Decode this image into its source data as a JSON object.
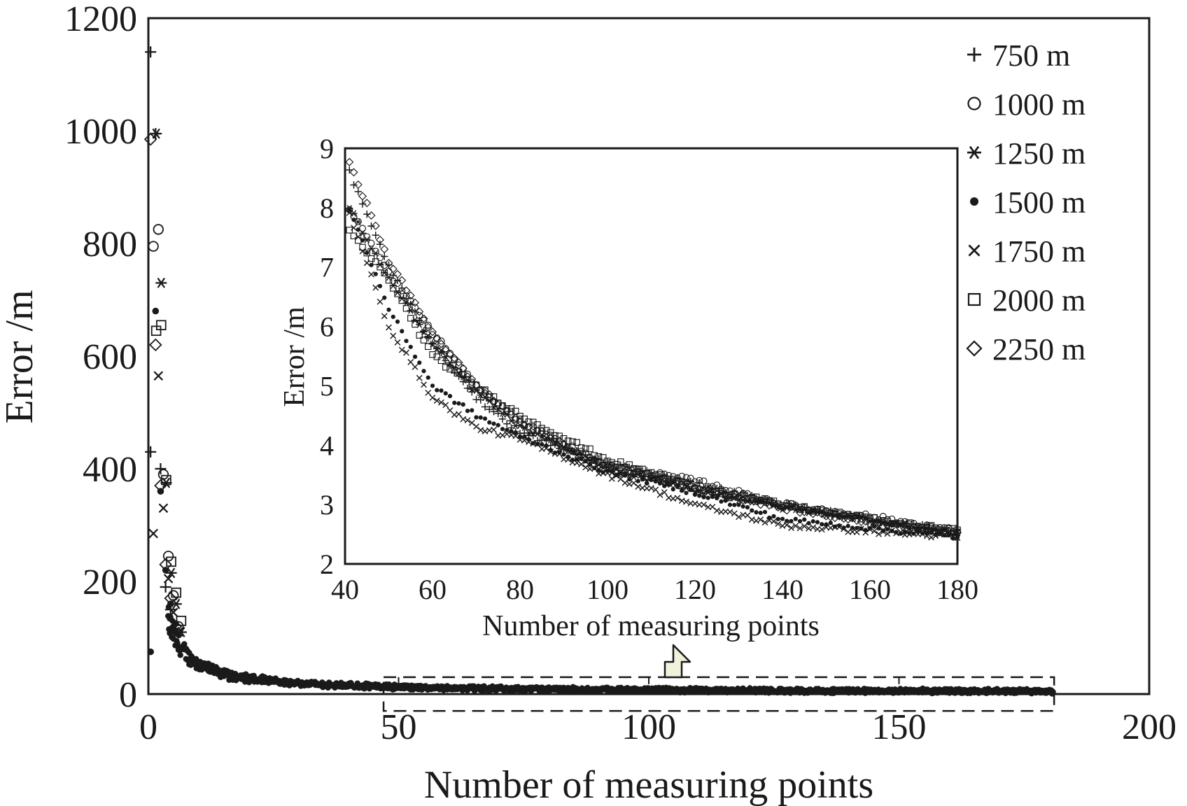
{
  "chart_data": [
    {
      "id": "main",
      "type": "scatter",
      "xlabel": "Number of measuring points",
      "ylabel": "Error /m",
      "xlim": [
        0,
        200
      ],
      "ylim": [
        0,
        1200
      ],
      "xticks": [
        0,
        50,
        100,
        150,
        200
      ],
      "yticks": [
        0,
        200,
        400,
        600,
        800,
        1000,
        1200
      ],
      "zoom_region": {
        "x": [
          47,
          181
        ],
        "y": [
          -30,
          30
        ]
      },
      "legend": {
        "position": "top-right"
      },
      "series": [
        {
          "name": "750 m",
          "marker": "plus",
          "points": [
            [
              1,
              1140
            ],
            [
              1,
              430
            ],
            [
              2,
              995
            ],
            [
              3,
              400
            ],
            [
              4,
              190
            ],
            [
              5,
              150
            ]
          ]
        },
        {
          "name": "1000 m",
          "marker": "circle",
          "points": [
            [
              1,
              795
            ],
            [
              2,
              825
            ],
            [
              3,
              390
            ],
            [
              4,
              245
            ],
            [
              5,
              175
            ],
            [
              6,
              120
            ]
          ]
        },
        {
          "name": "1250 m",
          "marker": "asterisk",
          "points": [
            [
              1,
              995
            ],
            [
              2,
              730
            ],
            [
              3,
              375
            ],
            [
              4,
              215
            ],
            [
              5,
              160
            ],
            [
              6,
              110
            ]
          ]
        },
        {
          "name": "1500 m",
          "marker": "dot",
          "points": [
            [
              1,
              75
            ],
            [
              2,
              680
            ],
            [
              3,
              360
            ],
            [
              4,
              220
            ],
            [
              5,
              160
            ],
            [
              6,
              125
            ]
          ]
        },
        {
          "name": "1750 m",
          "marker": "cross",
          "points": [
            [
              1,
              285
            ],
            [
              2,
              565
            ],
            [
              3,
              330
            ],
            [
              4,
              205
            ],
            [
              5,
              145
            ],
            [
              6,
              110
            ]
          ]
        },
        {
          "name": "2000 m",
          "marker": "square",
          "points": [
            [
              1,
              645
            ],
            [
              2,
              655
            ],
            [
              3,
              380
            ],
            [
              4,
              235
            ],
            [
              5,
              180
            ],
            [
              6,
              130
            ]
          ]
        },
        {
          "name": "2250 m",
          "marker": "diamond",
          "points": [
            [
              1,
              985
            ],
            [
              2,
              620
            ],
            [
              3,
              370
            ],
            [
              4,
              230
            ],
            [
              5,
              170
            ],
            [
              6,
              120
            ]
          ]
        }
      ],
      "decay_envelope": {
        "x_start": 4,
        "x_end": 181,
        "value_at_10": 55,
        "value_at_20": 28,
        "value_at_50": 8,
        "value_at_180": 2.5
      }
    },
    {
      "id": "inset",
      "type": "scatter",
      "xlabel": "Number of measuring points",
      "ylabel": "Error /m",
      "xlim": [
        40,
        180
      ],
      "ylim": [
        2,
        9
      ],
      "xticks": [
        40,
        60,
        80,
        100,
        120,
        140,
        160,
        180
      ],
      "yticks": [
        2,
        3,
        4,
        5,
        6,
        7,
        8,
        9
      ],
      "series": [
        {
          "name": "750 m",
          "marker": "plus",
          "anchors": [
            [
              41,
              8.6
            ],
            [
              50,
              7.0
            ],
            [
              60,
              5.7
            ],
            [
              70,
              4.8
            ],
            [
              80,
              4.2
            ],
            [
              100,
              3.7
            ],
            [
              120,
              3.35
            ],
            [
              140,
              3.0
            ],
            [
              160,
              2.75
            ],
            [
              180,
              2.55
            ]
          ]
        },
        {
          "name": "1000 m",
          "marker": "circle",
          "anchors": [
            [
              41,
              8.0
            ],
            [
              50,
              6.9
            ],
            [
              60,
              5.9
            ],
            [
              70,
              5.0
            ],
            [
              80,
              4.4
            ],
            [
              100,
              3.65
            ],
            [
              120,
              3.4
            ],
            [
              140,
              3.0
            ],
            [
              160,
              2.8
            ],
            [
              180,
              2.55
            ]
          ]
        },
        {
          "name": "1250 m",
          "marker": "asterisk",
          "anchors": [
            [
              41,
              8.0
            ],
            [
              50,
              6.8
            ],
            [
              60,
              5.7
            ],
            [
              70,
              4.9
            ],
            [
              80,
              4.3
            ],
            [
              100,
              3.6
            ],
            [
              120,
              3.25
            ],
            [
              140,
              2.95
            ],
            [
              160,
              2.75
            ],
            [
              180,
              2.5
            ]
          ]
        },
        {
          "name": "1500 m",
          "marker": "dot",
          "anchors": [
            [
              41,
              8.0
            ],
            [
              50,
              6.3
            ],
            [
              60,
              5.0
            ],
            [
              70,
              4.5
            ],
            [
              80,
              4.15
            ],
            [
              100,
              3.55
            ],
            [
              120,
              3.2
            ],
            [
              140,
              2.75
            ],
            [
              160,
              2.6
            ],
            [
              180,
              2.45
            ]
          ]
        },
        {
          "name": "1750 m",
          "marker": "cross",
          "anchors": [
            [
              41,
              7.9
            ],
            [
              50,
              6.0
            ],
            [
              60,
              4.8
            ],
            [
              70,
              4.3
            ],
            [
              80,
              4.1
            ],
            [
              100,
              3.5
            ],
            [
              120,
              3.0
            ],
            [
              140,
              2.65
            ],
            [
              160,
              2.55
            ],
            [
              180,
              2.45
            ]
          ]
        },
        {
          "name": "2000 m",
          "marker": "square",
          "anchors": [
            [
              41,
              7.6
            ],
            [
              50,
              6.8
            ],
            [
              60,
              5.5
            ],
            [
              70,
              5.0
            ],
            [
              80,
              4.5
            ],
            [
              100,
              3.75
            ],
            [
              120,
              3.3
            ],
            [
              140,
              3.0
            ],
            [
              160,
              2.75
            ],
            [
              180,
              2.55
            ]
          ]
        },
        {
          "name": "2250 m",
          "marker": "diamond",
          "anchors": [
            [
              41,
              8.8
            ],
            [
              50,
              7.1
            ],
            [
              60,
              5.9
            ],
            [
              70,
              5.0
            ],
            [
              80,
              4.4
            ],
            [
              100,
              3.6
            ],
            [
              120,
              3.3
            ],
            [
              140,
              2.95
            ],
            [
              160,
              2.7
            ],
            [
              180,
              2.5
            ]
          ]
        }
      ]
    }
  ],
  "colors": {
    "ink": "#1a1a1a",
    "background": "#ffffff",
    "zoom_arrow_fill": "#f2f2dc"
  }
}
